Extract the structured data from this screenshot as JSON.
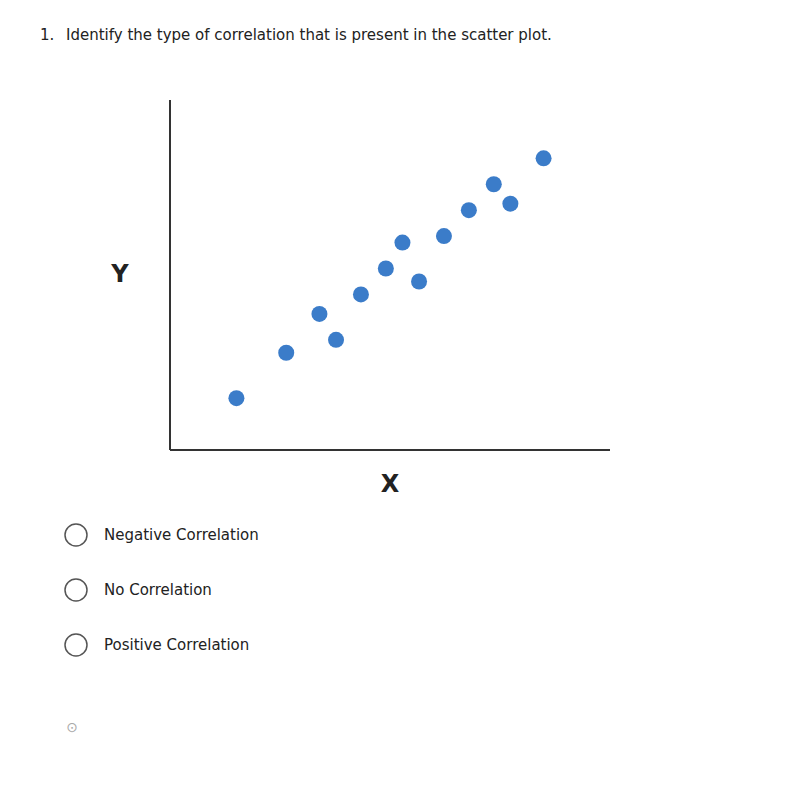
{
  "chart_data": {
    "type": "scatter",
    "title": "Identify the type of correlation that is present in the scatter plot.",
    "x_label": "X",
    "y_label": "Y",
    "x": [
      2.0,
      2.6,
      3.0,
      3.2,
      3.5,
      3.8,
      4.0,
      4.2,
      4.5,
      4.8,
      5.1,
      5.3,
      5.7
    ],
    "values": [
      1.2,
      1.9,
      2.5,
      2.1,
      2.8,
      3.2,
      3.6,
      3.0,
      3.7,
      4.1,
      4.5,
      4.2,
      4.9
    ],
    "color": "#3b7cc9",
    "xlim": [
      1.2,
      6.5
    ],
    "ylim": [
      0.4,
      5.8
    ],
    "tick_labels": false,
    "annotations": [
      "1.",
      "Negative Correlation",
      "No Correlation",
      "Positive Correlation",
      "⊙"
    ]
  }
}
